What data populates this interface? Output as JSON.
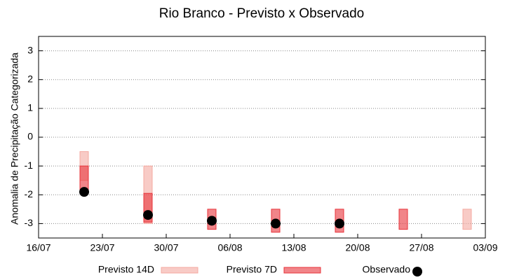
{
  "chart_data": {
    "type": "range",
    "title": "Rio Branco - Previsto x Observado",
    "y_label": "Anomalia de Precipitação Categorizada",
    "xlim": [
      "16/07",
      "03/09"
    ],
    "xticks": [
      "16/07",
      "23/07",
      "30/07",
      "06/08",
      "13/08",
      "20/08",
      "27/08",
      "03/09"
    ],
    "ylim": [
      -3.5,
      3.5
    ],
    "yticks": [
      -3,
      -2,
      -1,
      0,
      1,
      2,
      3
    ],
    "grid": true,
    "legend": "bottom",
    "series": [
      {
        "name": "Previsto 14D",
        "kind": "box",
        "color": "#f4a9a0",
        "x": [
          "21/07",
          "28/07",
          "01/09"
        ],
        "low": [
          -1.5,
          -3,
          -3.2
        ],
        "high": [
          -0.5,
          -1,
          -2.5
        ]
      },
      {
        "name": "Previsto 7D",
        "kind": "box",
        "color": "#e8333a",
        "x": [
          "21/07",
          "28/07",
          "04/08",
          "11/08",
          "18/08",
          "25/08"
        ],
        "low": [
          -1.9,
          -2.95,
          -3.2,
          -3.3,
          -3.3,
          -3.2
        ],
        "high": [
          -1,
          -1.95,
          -2.5,
          -2.5,
          -2.5,
          -2.5
        ]
      },
      {
        "name": "Observado",
        "kind": "point",
        "color": "#000000",
        "x": [
          "21/07",
          "28/07",
          "04/08",
          "11/08",
          "18/08"
        ],
        "values": [
          -1.9,
          -2.7,
          -2.9,
          -3,
          -3
        ]
      }
    ]
  }
}
